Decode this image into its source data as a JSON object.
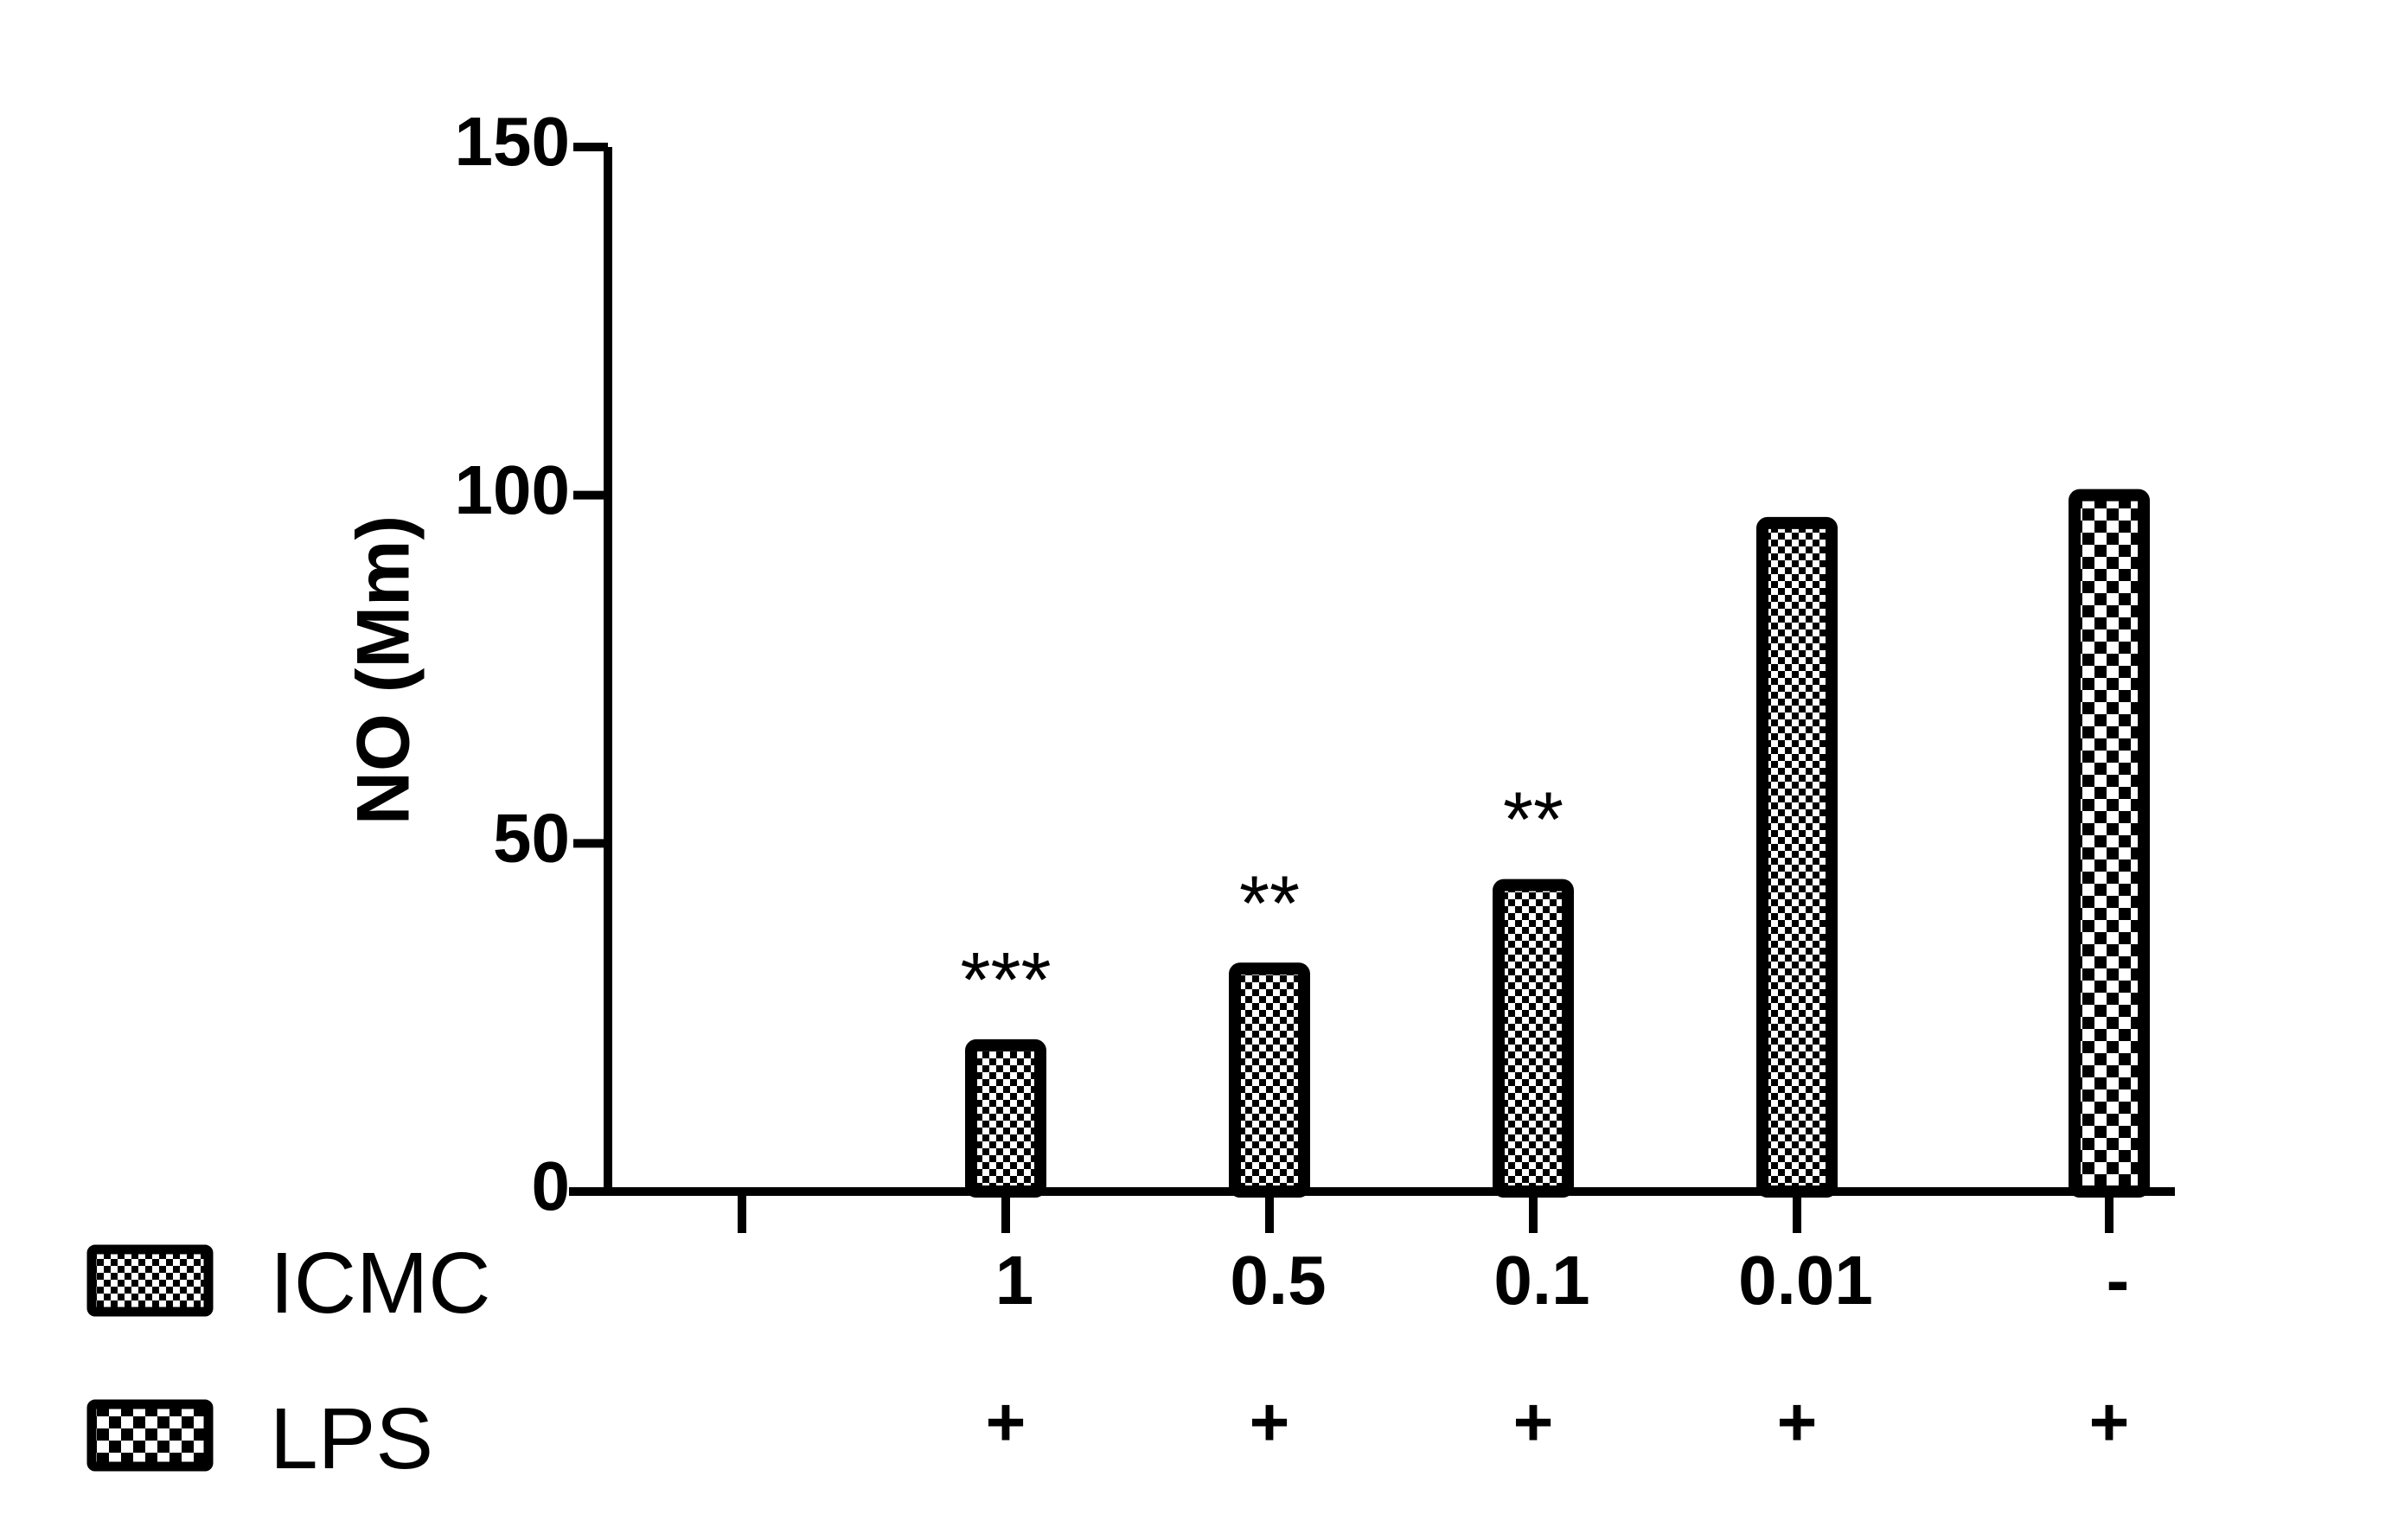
{
  "chart_data": {
    "type": "bar",
    "ylabel": "NO (Mm)",
    "ylim": [
      0,
      150
    ],
    "yticks": [
      "0",
      "50",
      "100",
      "150"
    ],
    "yticks_values": [
      0,
      50,
      100,
      150
    ],
    "grid": false,
    "categories": [
      "",
      "1",
      "0.5",
      "0.1",
      "0.01",
      "-"
    ],
    "lps_row": [
      "",
      "+",
      "+",
      "+",
      "+",
      "+"
    ],
    "values": [
      null,
      21,
      32,
      44,
      96,
      100
    ],
    "bar_series": [
      null,
      "ICMC",
      "ICMC",
      "ICMC",
      "ICMC",
      "LPS"
    ],
    "significance": [
      "",
      "***",
      "**",
      "**",
      "",
      ""
    ],
    "legend": [
      {
        "name": "ICMC",
        "pattern": "fine-checker"
      },
      {
        "name": "LPS",
        "pattern": "coarse-checker"
      }
    ],
    "colors": {
      "ink": "#000000",
      "fill": "#ffffff"
    }
  }
}
